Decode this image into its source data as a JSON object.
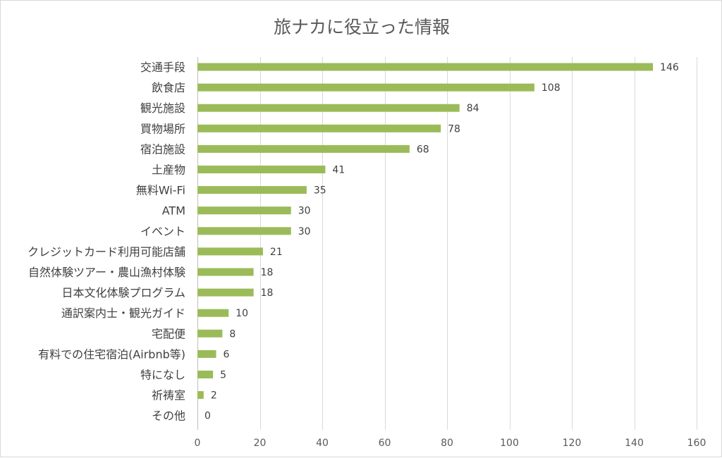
{
  "chart_data": {
    "type": "bar",
    "orientation": "horizontal",
    "title": "旅ナカに役立った情報",
    "xlabel": "",
    "ylabel": "",
    "xlim": [
      0,
      160
    ],
    "xticks": [
      0,
      20,
      40,
      60,
      80,
      100,
      120,
      140,
      160
    ],
    "grid": true,
    "legend": "none",
    "bar_color": "#9bbb59",
    "categories": [
      "交通手段",
      "飲食店",
      "観光施設",
      "買物場所",
      "宿泊施設",
      "土産物",
      "無料Wi-Fi",
      "ATM",
      "イベント",
      "クレジットカード利用可能店舗",
      "自然体験ツアー・農山漁村体験",
      "日本文化体験プログラム",
      "通訳案内士・観光ガイド",
      "宅配便",
      "有料での住宅宿泊(Airbnb等)",
      "特になし",
      "祈祷室",
      "その他"
    ],
    "values": [
      146,
      108,
      84,
      78,
      68,
      41,
      35,
      30,
      30,
      21,
      18,
      18,
      10,
      8,
      6,
      5,
      2,
      0
    ]
  }
}
